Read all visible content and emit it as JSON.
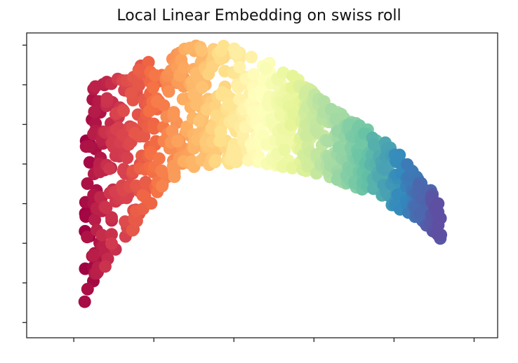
{
  "chart_data": {
    "type": "scatter",
    "title": "Local Linear Embedding on swiss roll",
    "xlabel": "",
    "ylabel": "",
    "xlim": [
      0,
      1
    ],
    "ylim": [
      0,
      1
    ],
    "x_tick_values": [
      0.1,
      0.27,
      0.44,
      0.61,
      0.78,
      0.95
    ],
    "y_tick_values": [
      0.05,
      0.18,
      0.31,
      0.44,
      0.57,
      0.7,
      0.83,
      0.96
    ],
    "tick_labels_shown": false,
    "grid": false,
    "legend": "none",
    "colormap": "Spectral",
    "colormap_stops": [
      "#9e0142",
      "#d53e4f",
      "#f46d43",
      "#fdae61",
      "#fee08b",
      "#ffffbf",
      "#e6f598",
      "#abdda4",
      "#66c2a5",
      "#3288bd",
      "#5e4fa2"
    ],
    "band_upper": [
      [
        0.12,
        0.79
      ],
      [
        0.15,
        0.83
      ],
      [
        0.2,
        0.86
      ],
      [
        0.25,
        0.9
      ],
      [
        0.3,
        0.93
      ],
      [
        0.36,
        0.96
      ],
      [
        0.42,
        0.96
      ],
      [
        0.48,
        0.93
      ],
      [
        0.54,
        0.89
      ],
      [
        0.6,
        0.82
      ],
      [
        0.66,
        0.75
      ],
      [
        0.72,
        0.69
      ],
      [
        0.78,
        0.62
      ],
      [
        0.84,
        0.52
      ],
      [
        0.88,
        0.44
      ]
    ],
    "band_lower": [
      [
        0.12,
        0.1
      ],
      [
        0.15,
        0.19
      ],
      [
        0.2,
        0.3
      ],
      [
        0.25,
        0.4
      ],
      [
        0.3,
        0.49
      ],
      [
        0.36,
        0.55
      ],
      [
        0.42,
        0.57
      ],
      [
        0.48,
        0.58
      ],
      [
        0.54,
        0.56
      ],
      [
        0.6,
        0.54
      ],
      [
        0.66,
        0.51
      ],
      [
        0.72,
        0.48
      ],
      [
        0.78,
        0.43
      ],
      [
        0.84,
        0.38
      ],
      [
        0.88,
        0.32
      ]
    ],
    "x_range_points": [
      0.12,
      0.88
    ],
    "point_count": 1000,
    "seed": 17
  }
}
